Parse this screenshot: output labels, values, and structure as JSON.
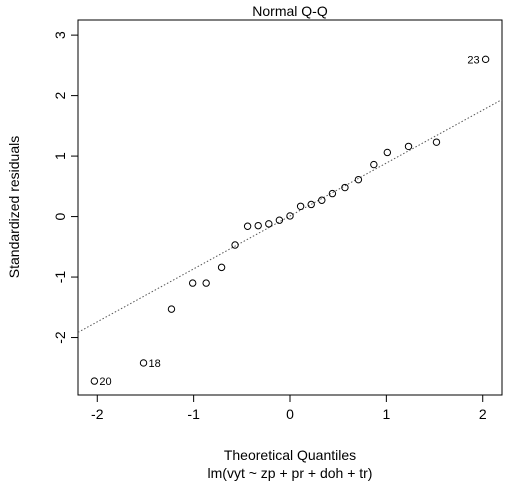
{
  "chart_data": {
    "type": "scatter",
    "title": "Normal Q-Q",
    "xlabel": "Theoretical Quantiles",
    "subtitle": "lm(vyt ~ zp + pr + doh + tr)",
    "ylabel": "Standardized residuals",
    "xlim": [
      -2.2,
      2.2
    ],
    "ylim": [
      -2.95,
      3.25
    ],
    "x_ticks": [
      -2,
      -1,
      0,
      1,
      2
    ],
    "y_ticks": [
      -2,
      -1,
      0,
      1,
      2,
      3
    ],
    "grid": false,
    "points": [
      {
        "x": -2.03,
        "y": -2.72,
        "label": "20"
      },
      {
        "x": -1.52,
        "y": -2.42,
        "label": "18"
      },
      {
        "x": -1.23,
        "y": -1.53
      },
      {
        "x": -1.01,
        "y": -1.1
      },
      {
        "x": -0.87,
        "y": -1.1
      },
      {
        "x": -0.71,
        "y": -0.84
      },
      {
        "x": -0.57,
        "y": -0.47
      },
      {
        "x": -0.44,
        "y": -0.16
      },
      {
        "x": -0.33,
        "y": -0.15
      },
      {
        "x": -0.22,
        "y": -0.12
      },
      {
        "x": -0.11,
        "y": -0.06
      },
      {
        "x": 0.0,
        "y": 0.01
      },
      {
        "x": 0.11,
        "y": 0.17
      },
      {
        "x": 0.22,
        "y": 0.2
      },
      {
        "x": 0.33,
        "y": 0.27
      },
      {
        "x": 0.44,
        "y": 0.38
      },
      {
        "x": 0.57,
        "y": 0.48
      },
      {
        "x": 0.71,
        "y": 0.61
      },
      {
        "x": 0.87,
        "y": 0.86
      },
      {
        "x": 1.01,
        "y": 1.06
      },
      {
        "x": 1.23,
        "y": 1.16
      },
      {
        "x": 1.52,
        "y": 1.23
      },
      {
        "x": 2.03,
        "y": 2.6,
        "label": "23"
      }
    ],
    "reference_line": {
      "intercept": 0.01,
      "slope": 0.875,
      "style": "dotted"
    }
  }
}
